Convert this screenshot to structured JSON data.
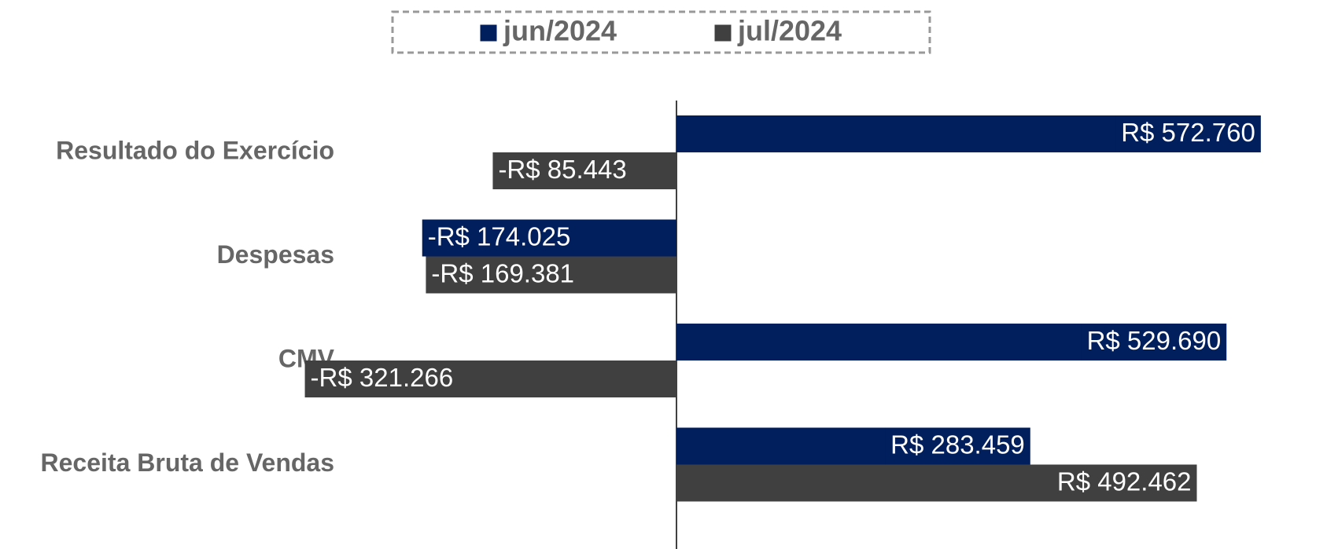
{
  "chart_data": {
    "type": "barh",
    "categories": [
      "Resultado do Exercício",
      "Despesas",
      "CMV",
      "Receita Bruta de Vendas"
    ],
    "series": [
      {
        "name": "jun/2024",
        "color": "#001f5c",
        "values": [
          572760,
          -174025,
          529690,
          283459
        ],
        "value_labels": [
          "R$ 572.760",
          "-R$ 174.025",
          "R$ 529.690",
          "R$ 283.459"
        ]
      },
      {
        "name": "jul/2024",
        "color": "#404040",
        "values": [
          -85443,
          -169381,
          -321266,
          492462
        ],
        "value_labels": [
          "-R$ 85.443",
          "-R$ 169.381",
          "-R$ 321.266",
          "R$ 492.462"
        ]
      }
    ],
    "legend": "top"
  }
}
